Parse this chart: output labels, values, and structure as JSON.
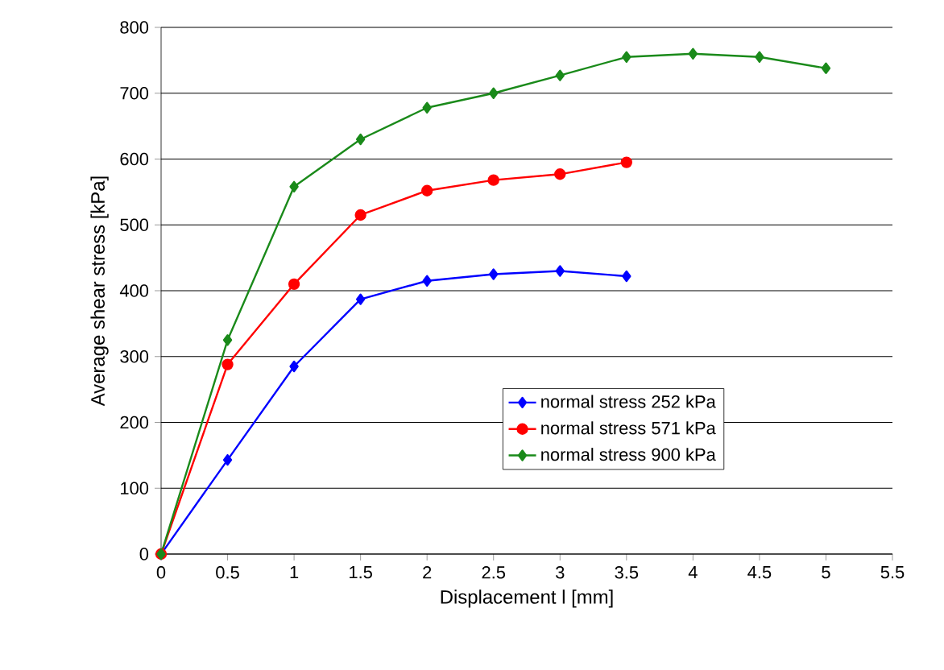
{
  "chart_data": {
    "type": "line",
    "xlabel": "Displacement l [mm]",
    "ylabel": "Average shear stress  [kPa]",
    "xlim": [
      0,
      5.5
    ],
    "ylim": [
      0,
      800
    ],
    "xticks": [
      0,
      0.5,
      1,
      1.5,
      2,
      2.5,
      3,
      3.5,
      4,
      4.5,
      5,
      5.5
    ],
    "yticks": [
      0,
      100,
      200,
      300,
      400,
      500,
      600,
      700,
      800
    ],
    "grid": "y",
    "legend": "bottom right",
    "line_style": "solid",
    "series": [
      {
        "name": "normal stress 252 kPa",
        "color": "#0000ff",
        "marker": "diamond",
        "x": [
          0,
          0.5,
          1,
          1.5,
          2,
          2.5,
          3,
          3.5
        ],
        "values": [
          0,
          143,
          285,
          387,
          415,
          425,
          430,
          422
        ]
      },
      {
        "name": "normal stress 571 kPa",
        "color": "#ff0000",
        "marker": "circle",
        "x": [
          0,
          0.5,
          1,
          1.5,
          2,
          2.5,
          3,
          3.5
        ],
        "values": [
          0,
          288,
          410,
          515,
          552,
          568,
          577,
          595
        ]
      },
      {
        "name": "normal stress 900 kPa",
        "color": "#1a8a1a",
        "marker": "diamond",
        "x": [
          0,
          0.5,
          1,
          1.5,
          2,
          2.5,
          3,
          3.5,
          4,
          4.5,
          5
        ],
        "values": [
          0,
          325,
          558,
          630,
          678,
          700,
          727,
          755,
          760,
          755,
          738
        ]
      }
    ]
  }
}
